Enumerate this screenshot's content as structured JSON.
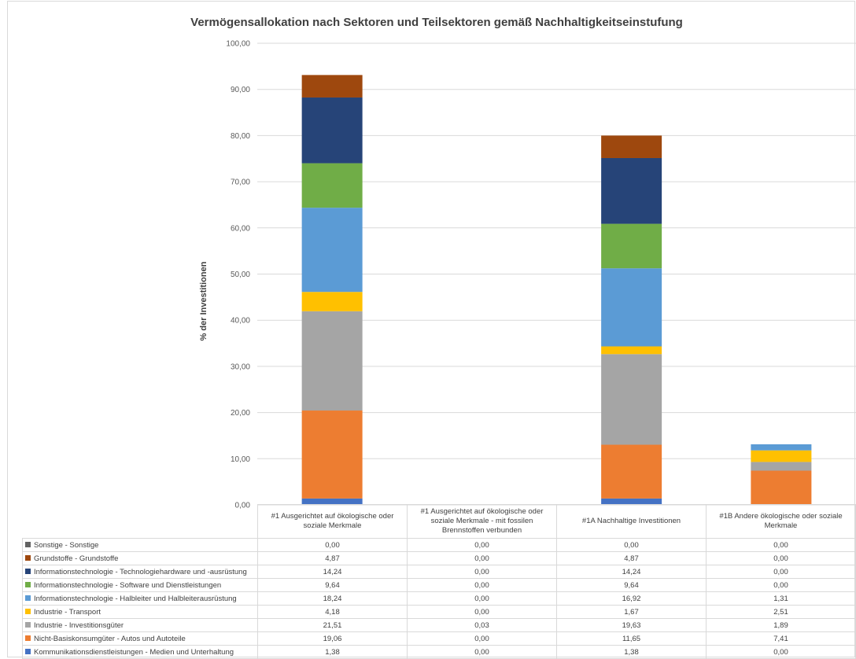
{
  "chart_data": {
    "type": "bar",
    "stacked": true,
    "title": "Vermögensallokation nach Sektoren und Teilsektoren gemäß Nachhaltigkeitseinstufung",
    "ylabel": "% der Investitionen",
    "xlabel": "",
    "ylim": [
      0,
      100
    ],
    "yticks": [
      "0,00",
      "10,00",
      "20,00",
      "30,00",
      "40,00",
      "50,00",
      "60,00",
      "70,00",
      "80,00",
      "90,00",
      "100,00"
    ],
    "grid": true,
    "legend_placement": "data-table-below",
    "categories": [
      "#1 Ausgerichtet auf ökologische oder soziale Merkmale",
      "#1 Ausgerichtet auf ökologische oder soziale Merkmale - mit fossilen Brennstoffen verbunden",
      "#1A Nachhaltige Investitionen",
      "#1B Andere ökologische oder soziale Merkmale"
    ],
    "series": [
      {
        "name": "Kommunikationsdienstleistungen - Medien und Unterhaltung",
        "color": "#4472c4",
        "values": [
          1.38,
          0.0,
          1.38,
          0.0
        ],
        "labels": [
          "1,38",
          "0,00",
          "1,38",
          "0,00"
        ]
      },
      {
        "name": "Nicht-Basiskonsumgüter - Autos und Autoteile",
        "color": "#ed7d31",
        "values": [
          19.06,
          0.0,
          11.65,
          7.41
        ],
        "labels": [
          "19,06",
          "0,00",
          "11,65",
          "7,41"
        ]
      },
      {
        "name": "Industrie - Investitionsgüter",
        "color": "#a5a5a5",
        "values": [
          21.51,
          0.03,
          19.63,
          1.89
        ],
        "labels": [
          "21,51",
          "0,03",
          "19,63",
          "1,89"
        ]
      },
      {
        "name": "Industrie - Transport",
        "color": "#ffc000",
        "values": [
          4.18,
          0.0,
          1.67,
          2.51
        ],
        "labels": [
          "4,18",
          "0,00",
          "1,67",
          "2,51"
        ]
      },
      {
        "name": "Informationstechnologie - Halbleiter und Halbleiterausrüstung",
        "color": "#5b9bd5",
        "values": [
          18.24,
          0.0,
          16.92,
          1.31
        ],
        "labels": [
          "18,24",
          "0,00",
          "16,92",
          "1,31"
        ]
      },
      {
        "name": "Informationstechnologie - Software und Dienstleistungen",
        "color": "#70ad47",
        "values": [
          9.64,
          0.0,
          9.64,
          0.0
        ],
        "labels": [
          "9,64",
          "0,00",
          "9,64",
          "0,00"
        ]
      },
      {
        "name": "Informationstechnologie - Technologiehardware und -ausrüstung",
        "color": "#264478",
        "values": [
          14.24,
          0.0,
          14.24,
          0.0
        ],
        "labels": [
          "14,24",
          "0,00",
          "14,24",
          "0,00"
        ]
      },
      {
        "name": "Grundstoffe - Grundstoffe",
        "color": "#9e480e",
        "values": [
          4.87,
          0.0,
          4.87,
          0.0
        ],
        "labels": [
          "4,87",
          "0,00",
          "4,87",
          "0,00"
        ]
      },
      {
        "name": "Sonstige - Sonstige",
        "color": "#636363",
        "values": [
          0.0,
          0.0,
          0.0,
          0.0
        ],
        "labels": [
          "0,00",
          "0,00",
          "0,00",
          "0,00"
        ]
      }
    ]
  }
}
